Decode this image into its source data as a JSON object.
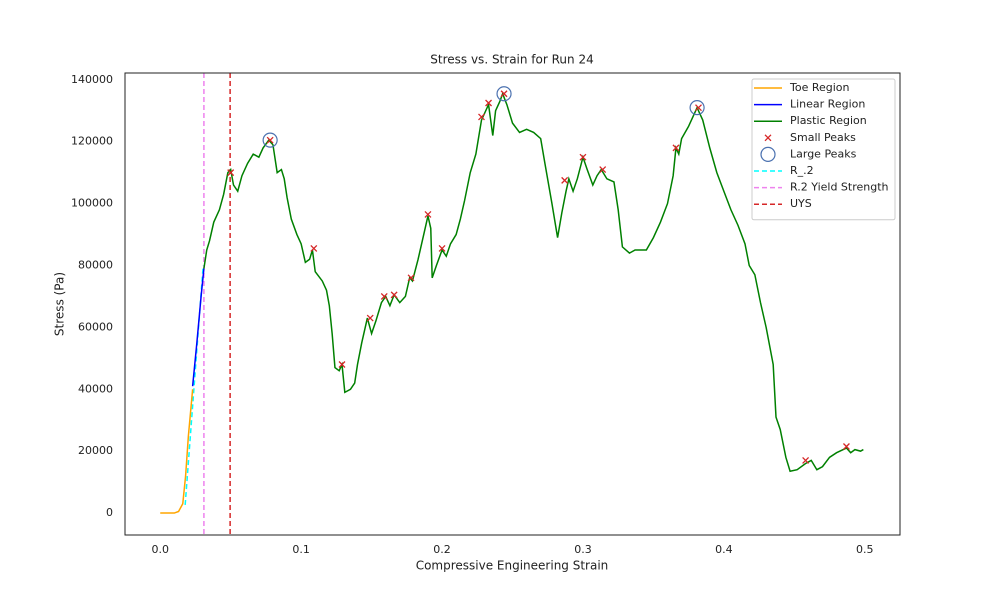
{
  "chart_data": {
    "type": "line",
    "title": "Stress vs. Strain for Run 24",
    "x_label": "Compressive Engineering Strain",
    "y_label": "Stress (Pa)",
    "xlim": [
      -0.025,
      0.525
    ],
    "ylim": [
      -7100,
      142200
    ],
    "xticks": [
      {
        "value": 0,
        "label": "0.0"
      },
      0.1,
      0.2,
      0.3,
      0.4,
      0.5
    ],
    "yticks": [
      0,
      20000,
      40000,
      60000,
      80000,
      100000,
      120000,
      140000
    ],
    "grid": false,
    "legend": "upper right",
    "series": [
      {
        "name": "Toe Region",
        "color": "orange",
        "kind": "line",
        "x": [
          0,
          0.01,
          0.013,
          0.016,
          0.018,
          0.02,
          0.023
        ],
        "y": [
          0,
          0,
          500,
          3000,
          12000,
          25000,
          40000
        ]
      },
      {
        "name": "Linear Region",
        "color": "blue",
        "kind": "line",
        "x": [
          0.023,
          0.026,
          0.029,
          0.031
        ],
        "y": [
          41000,
          55000,
          70000,
          79000
        ]
      },
      {
        "name": "Plastic Region",
        "color": "green",
        "kind": "line",
        "x": [
          0.031,
          0.033,
          0.035,
          0.038,
          0.042,
          0.045,
          0.048,
          0.05,
          0.052,
          0.055,
          0.058,
          0.062,
          0.066,
          0.07,
          0.073,
          0.077,
          0.08,
          0.083,
          0.086,
          0.088,
          0.09,
          0.093,
          0.097,
          0.1,
          0.103,
          0.106,
          0.108,
          0.11,
          0.115,
          0.118,
          0.12,
          0.122,
          0.124,
          0.127,
          0.129,
          0.131,
          0.135,
          0.138,
          0.14,
          0.143,
          0.147,
          0.15,
          0.153,
          0.157,
          0.16,
          0.163,
          0.166,
          0.17,
          0.174,
          0.177,
          0.179,
          0.183,
          0.187,
          0.19,
          0.192,
          0.193,
          0.196,
          0.2,
          0.203,
          0.206,
          0.21,
          0.213,
          0.216,
          0.22,
          0.224,
          0.228,
          0.231,
          0.233,
          0.236,
          0.238,
          0.241,
          0.243,
          0.246,
          0.25,
          0.255,
          0.26,
          0.265,
          0.27,
          0.273,
          0.278,
          0.282,
          0.285,
          0.288,
          0.29,
          0.293,
          0.296,
          0.3,
          0.303,
          0.307,
          0.31,
          0.313,
          0.317,
          0.322,
          0.325,
          0.328,
          0.333,
          0.337,
          0.345,
          0.35,
          0.355,
          0.36,
          0.364,
          0.366,
          0.368,
          0.37,
          0.375,
          0.378,
          0.381,
          0.385,
          0.39,
          0.395,
          0.4,
          0.405,
          0.41,
          0.415,
          0.418,
          0.422,
          0.426,
          0.43,
          0.435,
          0.437,
          0.44,
          0.444,
          0.447,
          0.452,
          0.458,
          0.462,
          0.466,
          0.47,
          0.475,
          0.48,
          0.487,
          0.49,
          0.493,
          0.497,
          0.499
        ],
        "y": [
          79000,
          85000,
          88000,
          94000,
          98000,
          103000,
          110000,
          111000,
          106000,
          104000,
          109000,
          113000,
          116000,
          115000,
          118000,
          120500,
          119000,
          110000,
          111000,
          108000,
          102000,
          95000,
          90000,
          87000,
          81000,
          82000,
          85000,
          78000,
          75000,
          72000,
          67000,
          58000,
          47000,
          46000,
          48000,
          39000,
          40000,
          42000,
          48000,
          55000,
          63000,
          58000,
          62000,
          68000,
          70000,
          67000,
          70500,
          68000,
          70000,
          76000,
          75000,
          82000,
          90000,
          96000,
          92000,
          76000,
          80000,
          85000,
          83000,
          87000,
          90000,
          95000,
          101000,
          110000,
          116000,
          127000,
          130000,
          132000,
          122000,
          130000,
          133000,
          135500,
          132000,
          126000,
          123000,
          124000,
          123000,
          121000,
          113000,
          100000,
          89000,
          97000,
          104000,
          108000,
          104000,
          108000,
          115000,
          111000,
          106000,
          109000,
          111000,
          108000,
          107000,
          98000,
          86000,
          84000,
          85000,
          85000,
          89000,
          94000,
          100000,
          109000,
          118000,
          116000,
          121000,
          125000,
          128000,
          131000,
          127000,
          118000,
          110000,
          104000,
          98000,
          93000,
          87000,
          80000,
          77000,
          68000,
          60000,
          48000,
          31000,
          27000,
          18000,
          13500,
          14000,
          16000,
          17000,
          14000,
          15000,
          18000,
          19500,
          21000,
          19500,
          20500,
          20000,
          20500
        ]
      },
      {
        "name": "Small Peaks",
        "color": "#d62728",
        "kind": "cross",
        "x": [
          0.05,
          0.078,
          0.109,
          0.129,
          0.149,
          0.159,
          0.166,
          0.178,
          0.19,
          0.2,
          0.228,
          0.233,
          0.244,
          0.287,
          0.3,
          0.314,
          0.366,
          0.382,
          0.458,
          0.487
        ],
        "y": [
          110000,
          120500,
          85500,
          48000,
          63000,
          70000,
          70500,
          76000,
          96500,
          85500,
          128000,
          132500,
          135500,
          107500,
          115000,
          111000,
          118000,
          131000,
          17000,
          21500
        ]
      },
      {
        "name": "Large Peaks",
        "color": "#4c72b0",
        "kind": "circle",
        "x": [
          0.078,
          0.244,
          0.381
        ],
        "y": [
          120500,
          135500,
          131000
        ]
      },
      {
        "name": "R_.2",
        "color": "cyan",
        "kind": "dashed",
        "x": [
          0.0177,
          0.0305
        ],
        "y": [
          2600,
          80000
        ]
      },
      {
        "name": "R.2 Yield Strength",
        "color": "violet",
        "kind": "vline",
        "x": 0.031
      },
      {
        "name": "UYS",
        "color": "#d62728",
        "kind": "vline",
        "x": 0.0496
      }
    ]
  }
}
